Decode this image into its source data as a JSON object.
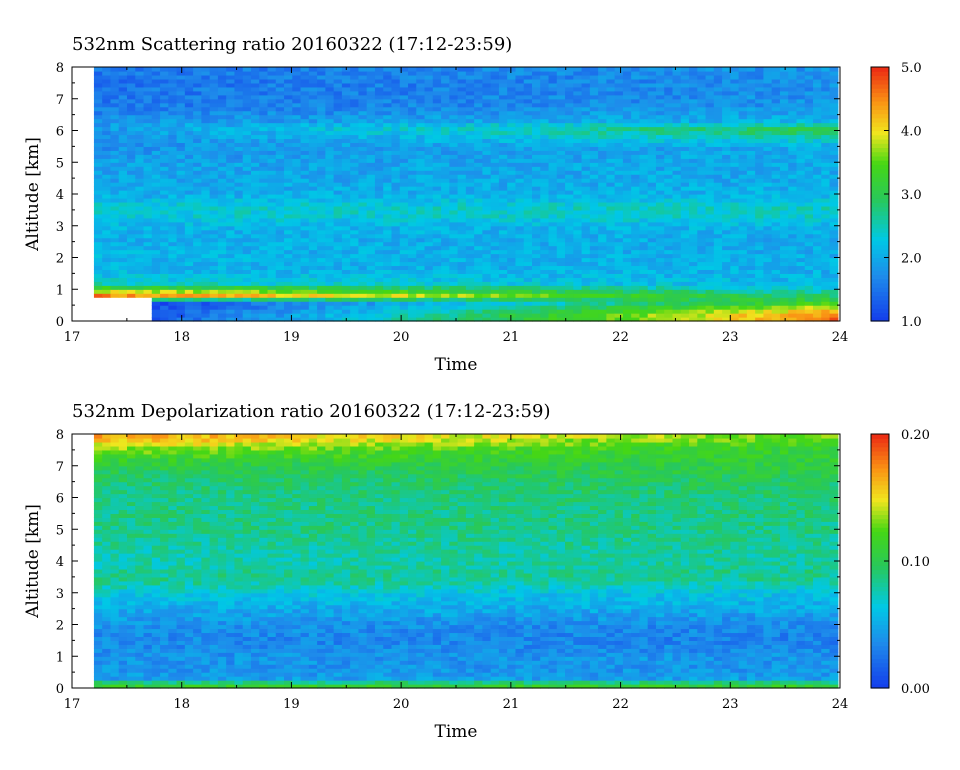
{
  "chart_data": [
    {
      "type": "heatmap",
      "title": "532nm Scattering ratio  20160322 (17:12-23:59)",
      "xlabel": "Time",
      "ylabel": "Altitude [km]",
      "xlim": [
        17,
        24
      ],
      "ylim": [
        0,
        8
      ],
      "x_ticks": [
        "17",
        "18",
        "19",
        "20",
        "21",
        "22",
        "23",
        "24"
      ],
      "y_ticks": [
        "0",
        "1",
        "2",
        "3",
        "4",
        "5",
        "6",
        "7",
        "8"
      ],
      "data_start_time": 17.2,
      "data_end_time": 23.98,
      "colorbar": {
        "range": [
          1.0,
          5.0
        ],
        "ticks": [
          "1.0",
          "2.0",
          "3.0",
          "4.0",
          "5.0"
        ]
      },
      "profile": {
        "altitude_km": [
          0.0,
          0.2,
          0.4,
          0.6,
          0.8,
          1.0,
          1.2,
          1.6,
          2.0,
          2.5,
          3.0,
          3.3,
          3.6,
          4.0,
          4.5,
          5.0,
          5.5,
          5.9,
          6.1,
          6.3,
          6.8,
          7.5,
          8.0
        ],
        "early_value": [
          1.0,
          1.0,
          1.0,
          1.0,
          4.6,
          3.6,
          2.4,
          2.1,
          2.1,
          2.05,
          2.1,
          2.3,
          2.35,
          2.0,
          1.95,
          1.9,
          1.75,
          1.8,
          1.9,
          1.8,
          1.55,
          1.5,
          1.55
        ],
        "late_value": [
          4.7,
          4.5,
          4.0,
          3.3,
          2.8,
          2.4,
          2.1,
          2.05,
          2.05,
          2.0,
          2.1,
          2.4,
          2.45,
          2.1,
          2.0,
          2.0,
          2.0,
          2.8,
          3.0,
          2.1,
          1.8,
          1.75,
          1.8
        ]
      }
    },
    {
      "type": "heatmap",
      "title": "532nm Depolarization ratio  20160322 (17:12-23:59)",
      "xlabel": "Time",
      "ylabel": "Altitude [km]",
      "xlim": [
        17,
        24
      ],
      "ylim": [
        0,
        8
      ],
      "x_ticks": [
        "17",
        "18",
        "19",
        "20",
        "21",
        "22",
        "23",
        "24"
      ],
      "y_ticks": [
        "0",
        "1",
        "2",
        "3",
        "4",
        "5",
        "6",
        "7",
        "8"
      ],
      "data_start_time": 17.2,
      "data_end_time": 23.98,
      "colorbar": {
        "range": [
          0.0,
          0.2
        ],
        "ticks": [
          "0.00",
          "0.10",
          "0.20"
        ]
      },
      "profile": {
        "altitude_km": [
          0.0,
          0.15,
          0.3,
          0.6,
          1.0,
          1.5,
          2.0,
          2.5,
          3.0,
          3.4,
          3.7,
          4.0,
          5.0,
          6.0,
          6.5,
          7.0,
          7.5,
          7.8,
          8.0
        ],
        "early_value": [
          0.12,
          0.1,
          0.045,
          0.04,
          0.04,
          0.035,
          0.04,
          0.05,
          0.065,
          0.085,
          0.08,
          0.075,
          0.085,
          0.085,
          0.09,
          0.1,
          0.13,
          0.16,
          0.17
        ],
        "late_value": [
          0.12,
          0.1,
          0.045,
          0.04,
          0.04,
          0.03,
          0.035,
          0.05,
          0.06,
          0.08,
          0.085,
          0.08,
          0.085,
          0.09,
          0.095,
          0.105,
          0.11,
          0.12,
          0.13
        ]
      }
    }
  ]
}
